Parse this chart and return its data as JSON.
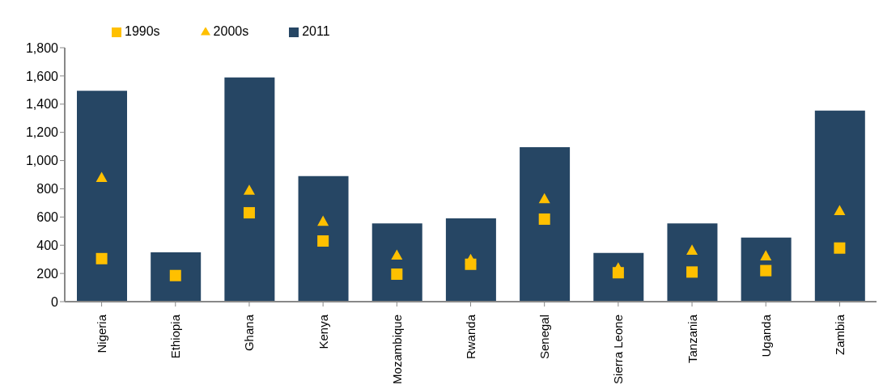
{
  "chart_data": {
    "type": "bar",
    "categories": [
      "Nigeria",
      "Ethiopia",
      "Ghana",
      "Kenya",
      "Mozambique",
      "Rwanda",
      "Senegal",
      "Sierra Leone",
      "Tanzania",
      "Uganda",
      "Zambia"
    ],
    "series": [
      {
        "name": "2011",
        "color": "#264664",
        "values": [
          1495,
          350,
          1590,
          890,
          555,
          590,
          1095,
          345,
          555,
          455,
          1355
        ]
      },
      {
        "name": "2000s",
        "type": "scatter",
        "marker": "triangle",
        "color": "#ffc000",
        "values": [
          880,
          null,
          790,
          570,
          330,
          300,
          730,
          240,
          365,
          325,
          645
        ]
      },
      {
        "name": "1990s",
        "type": "scatter",
        "marker": "square",
        "color": "#ffc000",
        "values": [
          305,
          185,
          630,
          430,
          195,
          265,
          585,
          205,
          210,
          220,
          380
        ]
      }
    ],
    "ylim": [
      0,
      1800
    ],
    "yticks": [
      0,
      200,
      400,
      600,
      800,
      {
        "value": 1000,
        "label": "1,000"
      },
      {
        "value": 1200,
        "label": "1,200"
      },
      {
        "value": 1400,
        "label": "1,400"
      },
      {
        "value": 1600,
        "label": "1,600"
      },
      {
        "value": 1800,
        "label": "1,800"
      }
    ],
    "grid": false,
    "legend": "top left"
  }
}
